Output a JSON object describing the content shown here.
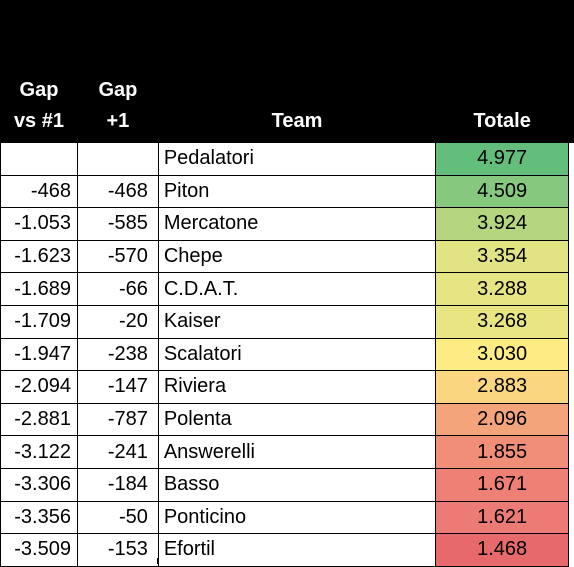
{
  "header": {
    "gap_vs_first": "Gap\nvs #1",
    "gap_plus_one": "Gap\n+1",
    "team": "Team",
    "total": "Totale"
  },
  "rows": [
    {
      "gap1": "",
      "gap2": "",
      "team": "Pedalatori",
      "total": "4.977",
      "color": "#63BE7B"
    },
    {
      "gap1": "-468",
      "gap2": "-468",
      "team": "Piton",
      "total": "4.509",
      "color": "#86C87E"
    },
    {
      "gap1": "-1.053",
      "gap2": "-585",
      "team": "Mercatone",
      "total": "3.924",
      "color": "#B5D57F"
    },
    {
      "gap1": "-1.623",
      "gap2": "-570",
      "team": "Chepe",
      "total": "3.354",
      "color": "#E2E383"
    },
    {
      "gap1": "-1.689",
      "gap2": "-66",
      "team": "C.D.A.T.",
      "total": "3.288",
      "color": "#E7E483"
    },
    {
      "gap1": "-1.709",
      "gap2": "-20",
      "team": "Kaiser",
      "total": "3.268",
      "color": "#E9E583"
    },
    {
      "gap1": "-1.947",
      "gap2": "-238",
      "team": "Scalatori",
      "total": "3.030",
      "color": "#FDEB84"
    },
    {
      "gap1": "-2.094",
      "gap2": "-147",
      "team": "Riviera",
      "total": "2.883",
      "color": "#FBD680"
    },
    {
      "gap1": "-2.881",
      "gap2": "-787",
      "team": "Polenta",
      "total": "2.096",
      "color": "#F3A47A"
    },
    {
      "gap1": "-3.122",
      "gap2": "-241",
      "team": "Answerelli",
      "total": "1.855",
      "color": "#F08E77"
    },
    {
      "gap1": "-3.306",
      "gap2": "-184",
      "team": "Basso",
      "total": "1.671",
      "color": "#EE8076"
    },
    {
      "gap1": "-3.356",
      "gap2": "-50",
      "team": "Ponticino",
      "total": "1.621",
      "color": "#ED7B75"
    },
    {
      "gap1": "-3.509",
      "gap2": "-153",
      "team": "Efortil",
      "total": "1.468",
      "color": "#E8696B"
    }
  ]
}
